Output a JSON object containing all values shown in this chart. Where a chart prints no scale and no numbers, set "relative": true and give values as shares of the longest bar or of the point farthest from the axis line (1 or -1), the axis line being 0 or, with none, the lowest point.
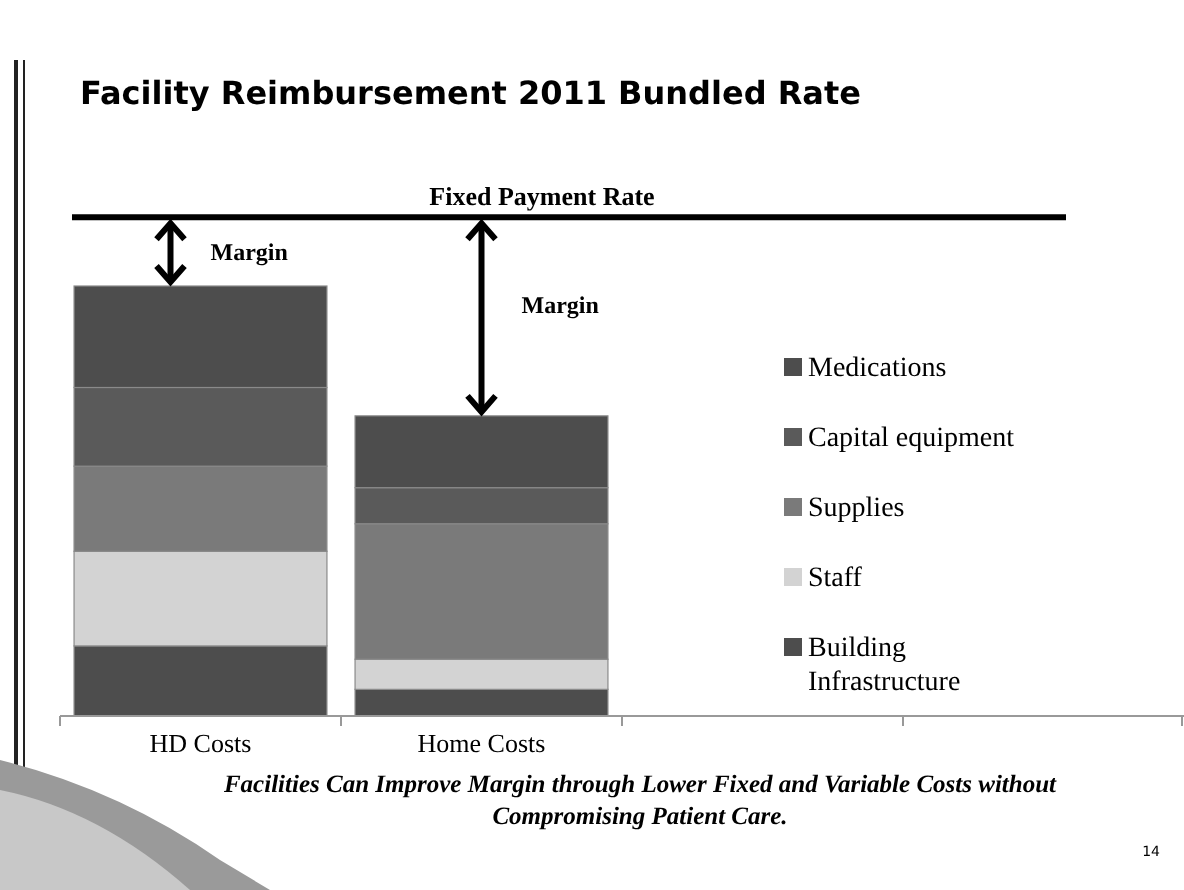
{
  "chart_data": {
    "type": "bar",
    "title": "Facility Reimbursement 2011 Bundled Rate",
    "relative": true,
    "stacked": true,
    "categories": [
      "HD Costs",
      "Home Costs",
      null,
      null
    ],
    "series": [
      {
        "name": "Building Infrastructure",
        "color": "#4d4d4d",
        "values": [
          0.163,
          0.062,
          null,
          null
        ]
      },
      {
        "name": "Staff",
        "color": "#d3d3d3",
        "values": [
          0.22,
          0.07,
          null,
          null
        ]
      },
      {
        "name": "Supplies",
        "color": "#7a7a7a",
        "values": [
          0.198,
          0.315,
          null,
          null
        ]
      },
      {
        "name": "Capital equipment",
        "color": "#5a5a5a",
        "values": [
          0.183,
          0.084,
          null,
          null
        ]
      },
      {
        "name": "Medications",
        "color": "#4d4d4d",
        "values": [
          0.236,
          0.167,
          null,
          null
        ]
      }
    ],
    "ref_lines": [
      {
        "axis": "y",
        "value": 1.16,
        "label": "Fixed Payment Rate",
        "color": "#000000"
      }
    ],
    "legend": "right",
    "annotations": [
      "Margin",
      "Margin",
      "Facilities Can Improve Margin through Lower Fixed and Variable Costs without Compromising Patient Care.",
      "14"
    ]
  }
}
